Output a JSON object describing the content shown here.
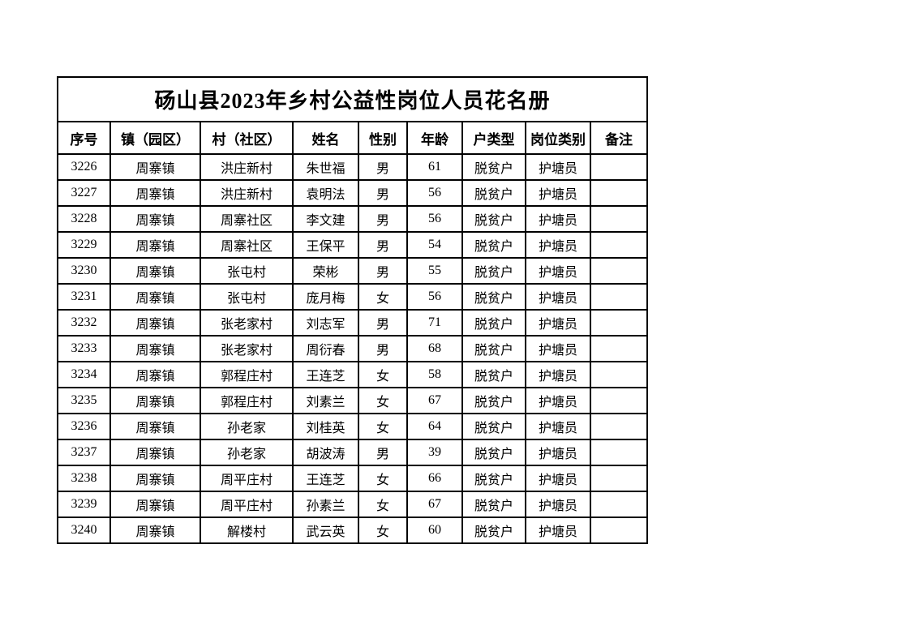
{
  "document": {
    "title": "砀山县2023年乡村公益性岗位人员花名册"
  },
  "table": {
    "headers": [
      "序号",
      "镇（园区）",
      "村（社区）",
      "姓名",
      "性别",
      "年龄",
      "户类型",
      "岗位类别",
      "备注"
    ],
    "rows": [
      [
        "3226",
        "周寨镇",
        "洪庄新村",
        "朱世福",
        "男",
        "61",
        "脱贫户",
        "护塘员",
        ""
      ],
      [
        "3227",
        "周寨镇",
        "洪庄新村",
        "袁明法",
        "男",
        "56",
        "脱贫户",
        "护塘员",
        ""
      ],
      [
        "3228",
        "周寨镇",
        "周寨社区",
        "李文建",
        "男",
        "56",
        "脱贫户",
        "护塘员",
        ""
      ],
      [
        "3229",
        "周寨镇",
        "周寨社区",
        "王保平",
        "男",
        "54",
        "脱贫户",
        "护塘员",
        ""
      ],
      [
        "3230",
        "周寨镇",
        "张屯村",
        "荣彬",
        "男",
        "55",
        "脱贫户",
        "护塘员",
        ""
      ],
      [
        "3231",
        "周寨镇",
        "张屯村",
        "庞月梅",
        "女",
        "56",
        "脱贫户",
        "护塘员",
        ""
      ],
      [
        "3232",
        "周寨镇",
        "张老家村",
        "刘志军",
        "男",
        "71",
        "脱贫户",
        "护塘员",
        ""
      ],
      [
        "3233",
        "周寨镇",
        "张老家村",
        "周衍春",
        "男",
        "68",
        "脱贫户",
        "护塘员",
        ""
      ],
      [
        "3234",
        "周寨镇",
        "郭程庄村",
        "王连芝",
        "女",
        "58",
        "脱贫户",
        "护塘员",
        ""
      ],
      [
        "3235",
        "周寨镇",
        "郭程庄村",
        "刘素兰",
        "女",
        "67",
        "脱贫户",
        "护塘员",
        ""
      ],
      [
        "3236",
        "周寨镇",
        "孙老家",
        "刘桂英",
        "女",
        "64",
        "脱贫户",
        "护塘员",
        ""
      ],
      [
        "3237",
        "周寨镇",
        "孙老家",
        "胡波涛",
        "男",
        "39",
        "脱贫户",
        "护塘员",
        ""
      ],
      [
        "3238",
        "周寨镇",
        "周平庄村",
        "王连芝",
        "女",
        "66",
        "脱贫户",
        "护塘员",
        ""
      ],
      [
        "3239",
        "周寨镇",
        "周平庄村",
        "孙素兰",
        "女",
        "67",
        "脱贫户",
        "护塘员",
        ""
      ],
      [
        "3240",
        "周寨镇",
        "解楼村",
        "武云英",
        "女",
        "60",
        "脱贫户",
        "护塘员",
        ""
      ]
    ]
  },
  "colors": {
    "page_background": "#ffffff",
    "table_border": "#000000",
    "text": "#000000"
  }
}
